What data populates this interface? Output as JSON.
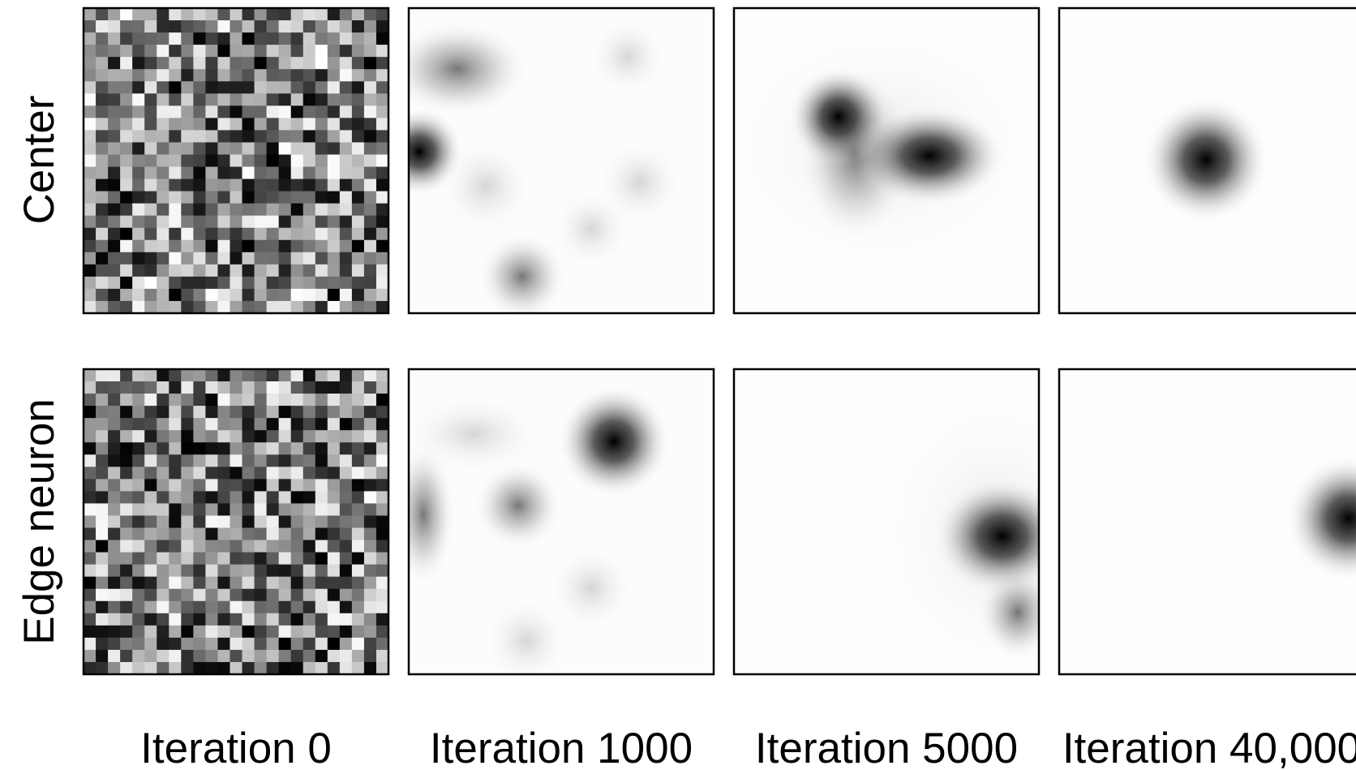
{
  "row_labels": [
    "Center",
    "Edge neuron"
  ],
  "column_labels": [
    "Iteration 0",
    "Iteration 1000",
    "Iteration 5000",
    "Iteration 40,000"
  ]
}
